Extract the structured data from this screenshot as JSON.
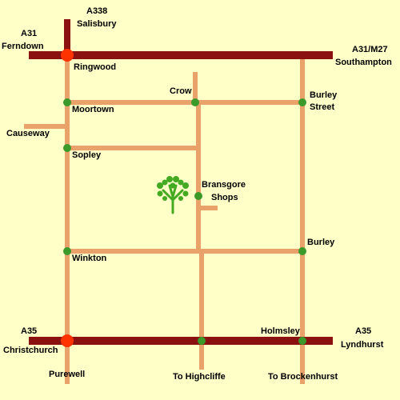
{
  "colors": {
    "background": "#ffffc8",
    "main_road": "#8b1010",
    "minor_road": "#e8a26a",
    "junction": "#3a9a2a",
    "main_junction": "#ff3300",
    "logo": "#44aa22"
  },
  "roads": {
    "a338": "A338",
    "salisbury": "Salisbury",
    "a31_west": "A31",
    "ferndown": "Ferndown",
    "a31_east": "A31/M27",
    "southampton": "Southampton",
    "a35_west": "A35",
    "christchurch": "Christchurch",
    "a35_east": "A35",
    "lyndhurst": "Lyndhurst"
  },
  "places": {
    "ringwood": "Ringwood",
    "crow": "Crow",
    "burley_street_1": "Burley",
    "burley_street_2": "Street",
    "moortown": "Moortown",
    "causeway": "Causeway",
    "sopley": "Sopley",
    "bransgore_1": "Bransgore",
    "bransgore_2": "Shops",
    "burley": "Burley",
    "winkton": "Winkton",
    "holmsley": "Holmsley",
    "purewell": "Purewell",
    "to_highcliffe": "To Highcliffe",
    "to_brockenhurst": "To Brockenhurst"
  },
  "logo_icon": "tree-icon"
}
